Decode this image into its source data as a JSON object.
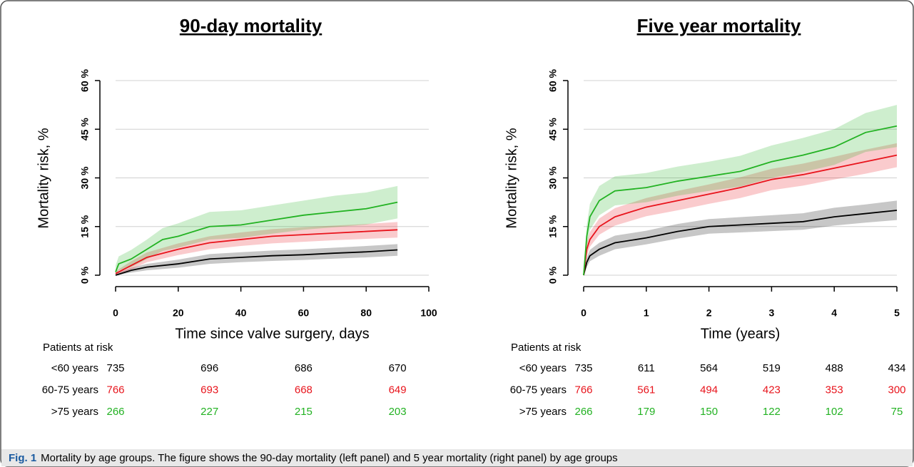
{
  "chart_data": [
    {
      "type": "line",
      "title": "90-day mortality",
      "ylabel": "Mortality risk, %",
      "xlabel": "Time since valve surgery, days",
      "xlim": [
        0,
        100
      ],
      "xticks": [
        0,
        20,
        40,
        60,
        80,
        100
      ],
      "ylim": [
        0,
        60
      ],
      "yticks": [
        {
          "value": 0,
          "label": "0 %"
        },
        {
          "value": 15,
          "label": "15 %"
        },
        {
          "value": 30,
          "label": "30 %"
        },
        {
          "value": 45,
          "label": "45 %"
        },
        {
          "value": 60,
          "label": "60 %"
        }
      ],
      "grid": true,
      "risk_title": "Patients at risk",
      "risk_x": [
        0,
        30,
        60,
        90
      ],
      "series": [
        {
          "name": "<60 years",
          "color": "#000000",
          "x": [
            0,
            5,
            10,
            20,
            30,
            40,
            50,
            60,
            70,
            80,
            90
          ],
          "values": [
            0,
            1.5,
            2.5,
            3.5,
            5,
            5.5,
            6,
            6.3,
            6.8,
            7.2,
            7.8
          ],
          "lower": [
            0,
            0.8,
            1.5,
            2.3,
            3.5,
            4,
            4.4,
            4.7,
            5.1,
            5.5,
            6
          ],
          "upper": [
            0.5,
            2.3,
            3.5,
            4.8,
            6.5,
            7.1,
            7.6,
            8,
            8.5,
            9,
            9.6
          ],
          "at_risk": [
            735,
            696,
            686,
            670
          ]
        },
        {
          "name": "60-75 years",
          "color": "#e8141c",
          "x": [
            0,
            5,
            10,
            20,
            30,
            40,
            50,
            60,
            70,
            80,
            90
          ],
          "values": [
            0.5,
            3,
            5.5,
            8,
            10,
            11,
            12,
            12.5,
            13,
            13.5,
            14
          ],
          "lower": [
            0,
            1.8,
            4,
            6.2,
            8,
            9,
            9.8,
            10.3,
            10.8,
            11.2,
            11.6
          ],
          "upper": [
            1.2,
            4.3,
            7,
            9.8,
            12,
            13.2,
            14.2,
            14.8,
            15.3,
            15.8,
            16.4
          ],
          "at_risk": [
            766,
            693,
            668,
            649
          ]
        },
        {
          "name": ">75 years",
          "color": "#22b222",
          "x": [
            0,
            1,
            5,
            10,
            15,
            20,
            30,
            40,
            50,
            60,
            70,
            80,
            90
          ],
          "values": [
            1,
            3.5,
            5,
            8,
            11,
            12,
            15,
            15.5,
            17,
            18.5,
            19.5,
            20.5,
            22.5
          ],
          "lower": [
            0,
            1.5,
            2.5,
            5,
            7.5,
            8.5,
            11,
            11.5,
            12.8,
            14,
            14.8,
            15.6,
            17.5
          ],
          "upper": [
            3,
            5.8,
            7.8,
            11,
            14.5,
            16,
            19.5,
            20,
            21.5,
            23,
            24.5,
            25.5,
            27.5
          ],
          "at_risk": [
            266,
            227,
            215,
            203
          ]
        }
      ]
    },
    {
      "type": "line",
      "title": "Five year mortality",
      "ylabel": "Mortality risk, %",
      "xlabel": "Time (years)",
      "xlim": [
        0,
        5
      ],
      "xticks": [
        0,
        1,
        2,
        3,
        4,
        5
      ],
      "ylim": [
        0,
        60
      ],
      "yticks": [
        {
          "value": 0,
          "label": "0 %"
        },
        {
          "value": 15,
          "label": "15 %"
        },
        {
          "value": 30,
          "label": "30 %"
        },
        {
          "value": 45,
          "label": "45 %"
        },
        {
          "value": 60,
          "label": "60 %"
        }
      ],
      "grid": true,
      "risk_title": "Patients at risk",
      "risk_x": [
        0,
        1,
        2,
        3,
        4,
        5
      ],
      "series": [
        {
          "name": "<60 years",
          "color": "#000000",
          "x": [
            0,
            0.05,
            0.1,
            0.25,
            0.5,
            1,
            1.5,
            2,
            2.5,
            3,
            3.5,
            4,
            4.5,
            5
          ],
          "values": [
            0,
            4,
            6,
            8,
            10,
            11.5,
            13.5,
            15,
            15.5,
            16,
            16.5,
            18,
            19,
            20
          ],
          "lower": [
            0,
            2.5,
            4.3,
            6,
            8,
            9.5,
            11.3,
            12.8,
            13.2,
            13.6,
            14,
            15.3,
            16.2,
            17
          ],
          "upper": [
            0.5,
            5.5,
            7.8,
            10,
            12.2,
            13.7,
            15.8,
            17.3,
            17.9,
            18.5,
            19.1,
            20.8,
            21.8,
            23
          ],
          "at_risk": [
            735,
            611,
            564,
            519,
            488,
            434
          ]
        },
        {
          "name": "60-75 years",
          "color": "#e8141c",
          "x": [
            0,
            0.05,
            0.1,
            0.25,
            0.5,
            1,
            1.5,
            2,
            2.5,
            3,
            3.5,
            4,
            4.5,
            5
          ],
          "values": [
            0,
            8,
            11,
            15,
            18,
            21,
            23,
            25,
            27,
            29.5,
            31,
            33,
            35,
            37
          ],
          "lower": [
            0,
            6,
            8.8,
            12.5,
            15.3,
            18.2,
            20,
            22,
            23.8,
            26.2,
            27.6,
            29.5,
            31.3,
            33.3
          ],
          "upper": [
            1,
            10,
            13.3,
            17.5,
            20.7,
            23.8,
            26,
            28,
            30.2,
            32.8,
            34.4,
            36.5,
            38.7,
            40.7
          ],
          "at_risk": [
            766,
            561,
            494,
            423,
            353,
            300
          ]
        },
        {
          "name": ">75 years",
          "color": "#22b222",
          "x": [
            0,
            0.05,
            0.1,
            0.25,
            0.5,
            1,
            1.5,
            2,
            2.5,
            3,
            3.5,
            4,
            4.5,
            5
          ],
          "values": [
            0,
            12,
            18,
            23,
            26,
            27,
            29,
            30.5,
            32,
            35,
            37,
            39.5,
            44,
            46
          ],
          "lower": [
            0,
            8.5,
            14,
            18.5,
            21.5,
            22.5,
            24.5,
            26,
            27.3,
            30,
            31.8,
            34,
            38,
            39.5
          ],
          "upper": [
            2,
            15.5,
            22,
            27.5,
            30.5,
            31.5,
            33.5,
            35,
            36.8,
            40,
            42.3,
            45,
            50,
            52.5
          ],
          "at_risk": [
            266,
            179,
            150,
            122,
            102,
            75
          ]
        }
      ]
    }
  ],
  "caption": {
    "label": "Fig. 1",
    "text": "Mortality by age groups. The figure shows the 90-day mortality (left panel) and 5 year mortality (right panel) by age groups"
  }
}
